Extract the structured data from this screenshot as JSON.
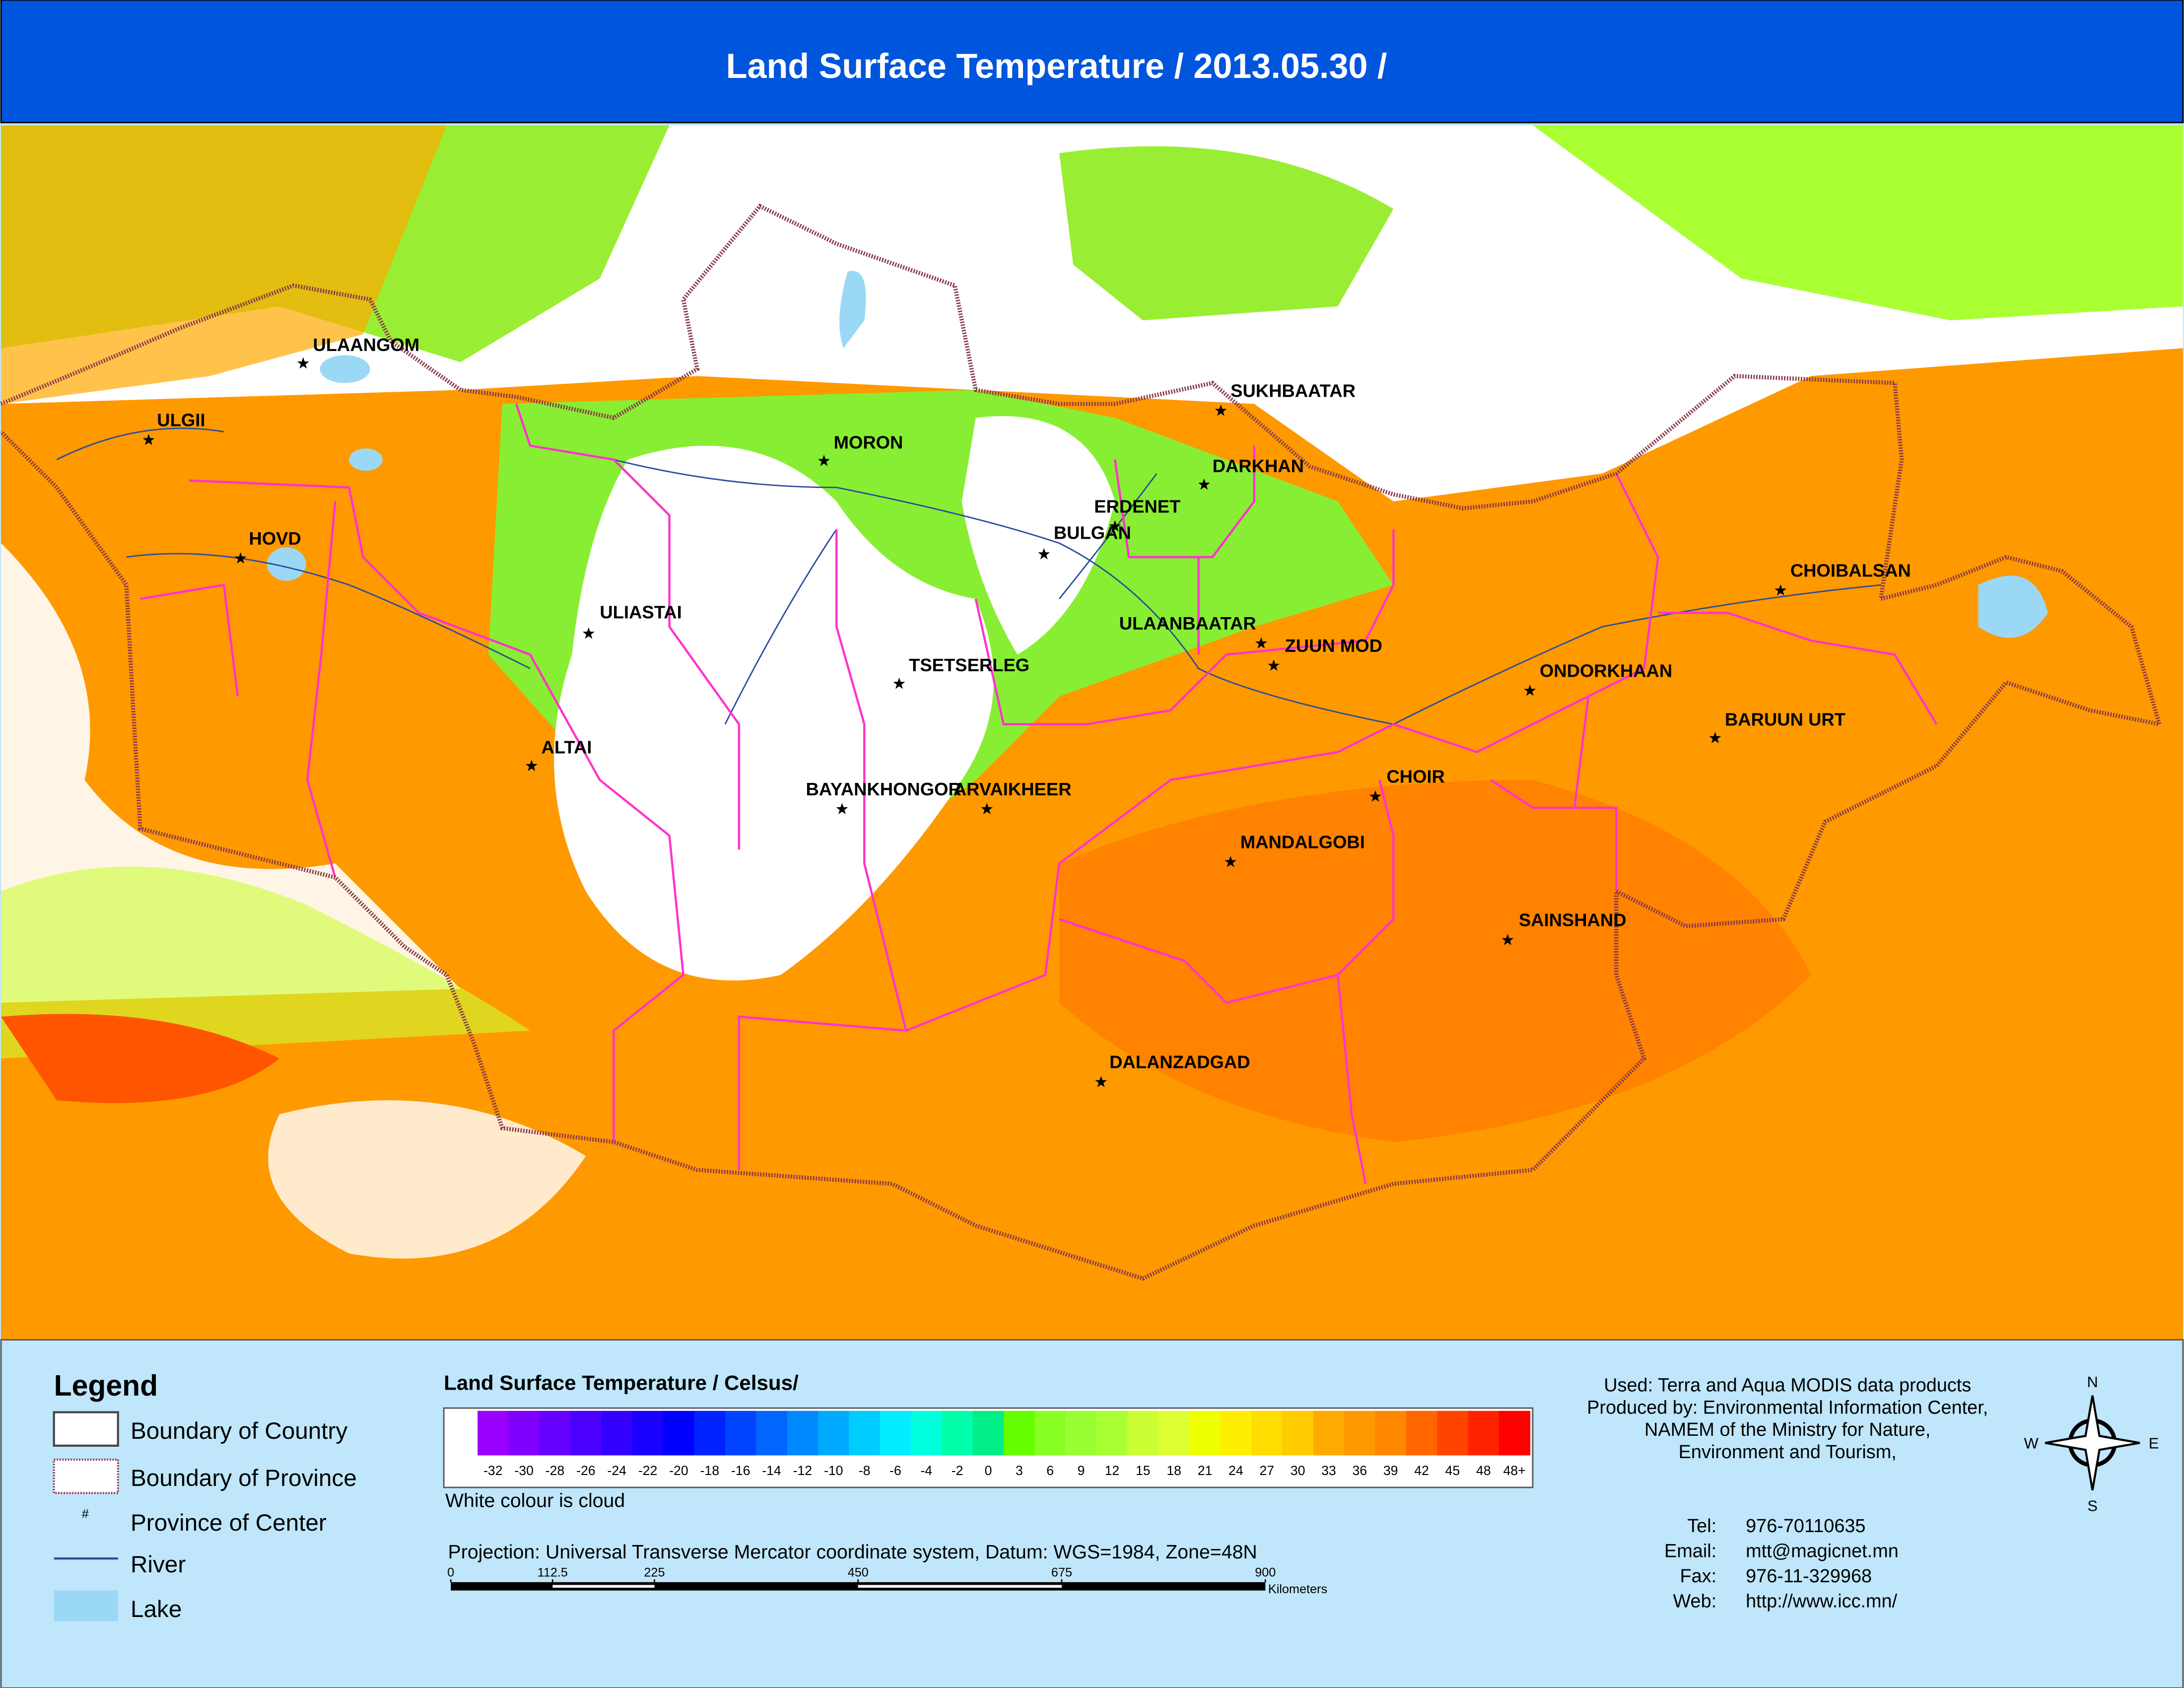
{
  "header": {
    "title": "Land Surface Temperature / 2013.05.30 /"
  },
  "cities": [
    {
      "name": "ULAANGOM"
    },
    {
      "name": "ULGII"
    },
    {
      "name": "HOVD"
    },
    {
      "name": "ULIASTAI"
    },
    {
      "name": "ALTAI"
    },
    {
      "name": "MORON"
    },
    {
      "name": "SUKHBAATAR"
    },
    {
      "name": "DARKHAN"
    },
    {
      "name": "ERDENET"
    },
    {
      "name": "BULGAN"
    },
    {
      "name": "ULAANBAATAR"
    },
    {
      "name": "ZUUN MOD"
    },
    {
      "name": "TSETSERLEG"
    },
    {
      "name": "BAYANKHONGOR"
    },
    {
      "name": "ARVAIKHEER"
    },
    {
      "name": "CHOIBALSAN"
    },
    {
      "name": "ONDORKHAAN"
    },
    {
      "name": "BARUUN URT"
    },
    {
      "name": "CHOIR"
    },
    {
      "name": "MANDALGOBI"
    },
    {
      "name": "SAINSHAND"
    },
    {
      "name": "DALANZADGAD"
    }
  ],
  "legend": {
    "title": "Legend",
    "items": [
      {
        "label": "Boundary of Country"
      },
      {
        "label": "Boundary of Province"
      },
      {
        "label": "Province of Center",
        "symbol": "#"
      },
      {
        "label": "River"
      },
      {
        "label": "Lake"
      }
    ]
  },
  "colorbar": {
    "title": "Land Surface Temperature / Celsus/",
    "note": "White colour is cloud",
    "labels": [
      -32,
      -30,
      -28,
      -26,
      -24,
      -22,
      -20,
      -18,
      -16,
      -14,
      -12,
      -10,
      -8,
      -6,
      -4,
      -2,
      0,
      3,
      6,
      9,
      12,
      15,
      18,
      21,
      24,
      27,
      30,
      33,
      36,
      39,
      42,
      45,
      48,
      "48+"
    ],
    "colors": [
      "#ffffff",
      "#9900ff",
      "#7f00ff",
      "#6600ff",
      "#4c00ff",
      "#3300ff",
      "#1a00ff",
      "#0000ff",
      "#0022ff",
      "#0044ff",
      "#0066ff",
      "#0088ff",
      "#00aaff",
      "#00ccff",
      "#00eeff",
      "#00ffdd",
      "#00ffaa",
      "#00ee88",
      "#66ff00",
      "#88ff22",
      "#99ff33",
      "#aaff33",
      "#ccff33",
      "#ddff33",
      "#eeff00",
      "#ffee00",
      "#ffdd00",
      "#ffcc00",
      "#ffaa00",
      "#ff9900",
      "#ff8800",
      "#ff6600",
      "#ff4400",
      "#ff2200",
      "#ff0000"
    ]
  },
  "projection": "Projection: Universal Transverse Mercator coordinate system, Datum: WGS=1984, Zone=48N",
  "scale": {
    "ticks": [
      0,
      112.5,
      225,
      450,
      675,
      900
    ],
    "unit": "Kilometers"
  },
  "credits": [
    "Used: Terra and Aqua MODIS data products",
    "Produced by: Environmental Information Center,",
    "NAMEM of the Ministry for Nature,",
    "Environment and Tourism,"
  ],
  "contacts": [
    {
      "label": "Tel:",
      "value": "976-70110635"
    },
    {
      "label": "Email:",
      "value": "mtt@magicnet.mn"
    },
    {
      "label": "Fax:",
      "value": "976-11-329968"
    },
    {
      "label": "Web:",
      "value": "http://www.icc.mn/"
    }
  ],
  "compass": {
    "n": "N",
    "e": "E",
    "s": "S",
    "w": "W"
  }
}
